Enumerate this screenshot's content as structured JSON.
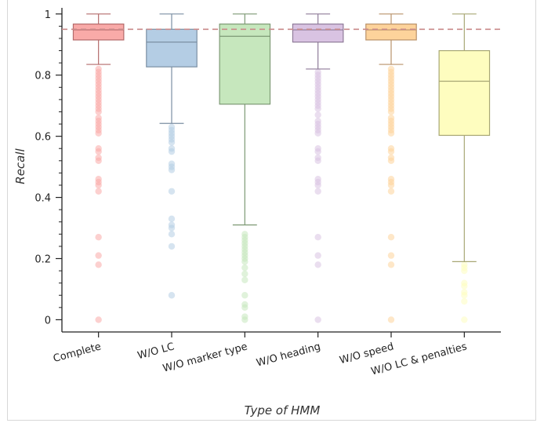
{
  "chart_data": {
    "type": "box",
    "xlabel": "Type of HMM",
    "ylabel": "Recall",
    "ylim": [
      -0.04,
      1.02
    ],
    "yticks": [
      0,
      0.2,
      0.4,
      0.6,
      0.8,
      1
    ],
    "ytick_labels": [
      "0",
      "0.2",
      "0.4",
      "0.6",
      "0.8",
      "1"
    ],
    "reference_line": {
      "y": 0.95,
      "color": "#c98a8a",
      "style": "dashed"
    },
    "categories": [
      "Complete",
      "W/O LC",
      "W/O marker type",
      "W/O heading",
      "W/O speed",
      "W/O LC & penalties"
    ],
    "series": [
      {
        "category": "Complete",
        "fill": "#f9aaa8",
        "stroke": "#b46b6b",
        "whisker_low": 0.835,
        "q1": 0.915,
        "median": 0.948,
        "q3": 0.967,
        "whisker_high": 1.0,
        "outliers": [
          0.82,
          0.81,
          0.8,
          0.79,
          0.78,
          0.77,
          0.76,
          0.75,
          0.74,
          0.73,
          0.72,
          0.71,
          0.7,
          0.69,
          0.68,
          0.66,
          0.65,
          0.64,
          0.63,
          0.62,
          0.61,
          0.56,
          0.55,
          0.53,
          0.52,
          0.46,
          0.45,
          0.44,
          0.42,
          0.27,
          0.21,
          0.18,
          0.0
        ]
      },
      {
        "category": "W/O LC",
        "fill": "#b4cde4",
        "stroke": "#7b8fa3",
        "whisker_low": 0.642,
        "q1": 0.827,
        "median": 0.908,
        "q3": 0.95,
        "whisker_high": 1.0,
        "outliers": [
          0.63,
          0.62,
          0.61,
          0.6,
          0.59,
          0.58,
          0.56,
          0.55,
          0.51,
          0.5,
          0.49,
          0.42,
          0.33,
          0.31,
          0.3,
          0.28,
          0.24,
          0.08
        ]
      },
      {
        "category": "W/O marker type",
        "fill": "#c6e7bd",
        "stroke": "#7d9974",
        "whisker_low": 0.31,
        "q1": 0.705,
        "median": 0.927,
        "q3": 0.967,
        "whisker_high": 1.0,
        "outliers": [
          0.28,
          0.27,
          0.26,
          0.25,
          0.24,
          0.23,
          0.22,
          0.21,
          0.2,
          0.19,
          0.17,
          0.15,
          0.13,
          0.08,
          0.05,
          0.04,
          0.01,
          0.0
        ]
      },
      {
        "category": "W/O heading",
        "fill": "#d9c3e2",
        "stroke": "#8f7b99",
        "whisker_low": 0.82,
        "q1": 0.908,
        "median": 0.948,
        "q3": 0.967,
        "whisker_high": 1.0,
        "outliers": [
          0.81,
          0.8,
          0.79,
          0.78,
          0.77,
          0.76,
          0.75,
          0.74,
          0.73,
          0.72,
          0.71,
          0.7,
          0.69,
          0.67,
          0.65,
          0.64,
          0.63,
          0.62,
          0.61,
          0.56,
          0.55,
          0.53,
          0.52,
          0.46,
          0.45,
          0.44,
          0.42,
          0.27,
          0.21,
          0.18,
          0.0
        ]
      },
      {
        "category": "W/O speed",
        "fill": "#fdd39b",
        "stroke": "#b9926a",
        "whisker_low": 0.835,
        "q1": 0.915,
        "median": 0.948,
        "q3": 0.967,
        "whisker_high": 1.0,
        "outliers": [
          0.82,
          0.81,
          0.8,
          0.79,
          0.78,
          0.77,
          0.76,
          0.75,
          0.74,
          0.73,
          0.72,
          0.71,
          0.7,
          0.69,
          0.68,
          0.66,
          0.65,
          0.64,
          0.63,
          0.62,
          0.61,
          0.56,
          0.55,
          0.53,
          0.52,
          0.46,
          0.45,
          0.44,
          0.42,
          0.27,
          0.21,
          0.18,
          0.0
        ]
      },
      {
        "category": "W/O LC & penalties",
        "fill": "#fefdbf",
        "stroke": "#a8a774",
        "whisker_low": 0.19,
        "q1": 0.603,
        "median": 0.78,
        "q3": 0.88,
        "whisker_high": 1.0,
        "outliers": [
          0.18,
          0.17,
          0.16,
          0.12,
          0.11,
          0.09,
          0.08,
          0.06,
          0.0
        ]
      }
    ]
  }
}
